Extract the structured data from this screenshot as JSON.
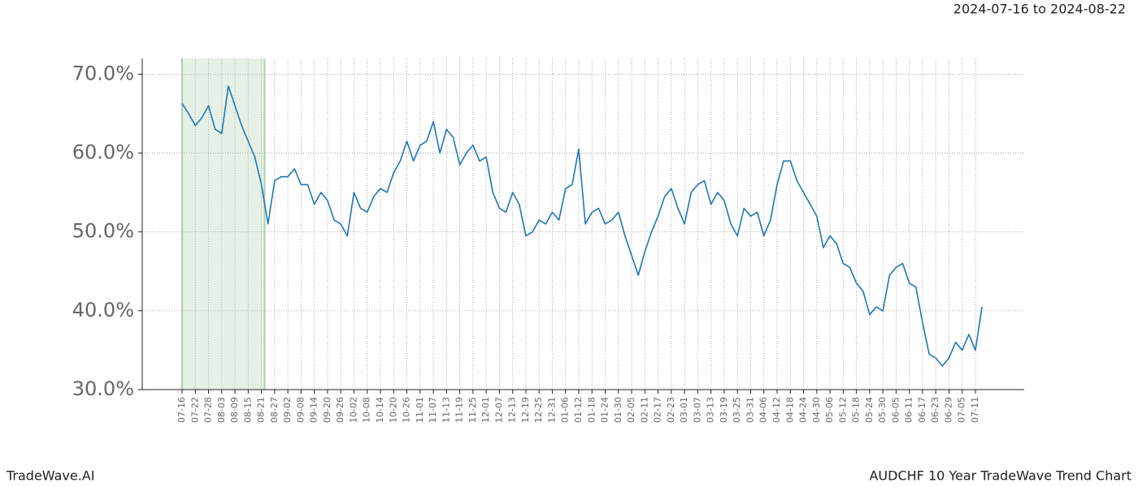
{
  "chart_data": {
    "type": "line",
    "subtitle": "2024-07-16 to 2024-08-22",
    "footer_left": "TradeWave.AI",
    "footer_right": "AUDCHF 10 Year TradeWave Trend Chart",
    "categories": [
      "07-16",
      null,
      "07-22",
      null,
      "07-28",
      null,
      "08-03",
      null,
      "08-09",
      null,
      "08-15",
      null,
      "08-21",
      null,
      "08-27",
      null,
      "09-02",
      null,
      "09-08",
      null,
      "09-14",
      null,
      "09-20",
      null,
      "09-26",
      null,
      "10-02",
      null,
      "10-08",
      null,
      "10-14",
      null,
      "10-20",
      null,
      "10-26",
      null,
      "11-01",
      null,
      "11-07",
      null,
      "11-13",
      null,
      "11-19",
      null,
      "11-25",
      null,
      "12-01",
      null,
      "12-07",
      null,
      "12-13",
      null,
      "12-19",
      null,
      "12-25",
      null,
      "12-31",
      null,
      "01-06",
      null,
      "01-12",
      null,
      "01-18",
      null,
      "01-24",
      null,
      "01-30",
      null,
      "02-05",
      null,
      "02-11",
      null,
      "02-17",
      null,
      "02-23",
      null,
      "03-01",
      null,
      "03-07",
      null,
      "03-13",
      null,
      "03-19",
      null,
      "03-25",
      null,
      "03-31",
      null,
      "04-06",
      null,
      "04-12",
      null,
      "04-18",
      null,
      "04-24",
      null,
      "04-30",
      null,
      "05-06",
      null,
      "05-12",
      null,
      "05-18",
      null,
      "05-24",
      null,
      "05-30",
      null,
      "06-05",
      null,
      "06-11",
      null,
      "06-17",
      null,
      "06-23",
      null,
      "06-29",
      null,
      "07-05",
      null,
      "07-11",
      null
    ],
    "series": [
      {
        "name": "AUDCHF",
        "color": "#1f77b4",
        "values": [
          66.3,
          65.0,
          63.5,
          64.5,
          66.0,
          63.0,
          62.5,
          68.5,
          66.0,
          63.5,
          61.5,
          59.5,
          56.0,
          51.0,
          56.5,
          57.0,
          57.0,
          58.0,
          56.0,
          56.0,
          53.5,
          55.0,
          54.0,
          51.5,
          51.0,
          49.5,
          55.0,
          53.0,
          52.5,
          54.5,
          55.5,
          55.0,
          57.5,
          59.0,
          61.5,
          59.0,
          61.0,
          61.5,
          64.0,
          60.0,
          63.0,
          62.0,
          58.5,
          60.0,
          61.0,
          59.0,
          59.5,
          55.0,
          53.0,
          52.5,
          55.0,
          53.5,
          49.5,
          50.0,
          51.5,
          51.0,
          52.5,
          51.5,
          55.5,
          56.0,
          60.5,
          51.0,
          52.5,
          53.0,
          51.0,
          51.5,
          52.5,
          49.5,
          47.0,
          44.5,
          47.5,
          50.0,
          52.0,
          54.5,
          55.5,
          53.0,
          51.0,
          55.0,
          56.0,
          56.5,
          53.5,
          55.0,
          54.0,
          51.0,
          49.5,
          53.0,
          52.0,
          52.5,
          49.5,
          51.5,
          56.0,
          59.0,
          59.0,
          56.5,
          55.0,
          53.5,
          52.0,
          48.0,
          49.5,
          48.5,
          46.0,
          45.5,
          43.5,
          42.5,
          39.5,
          40.5,
          40.0,
          44.5,
          45.5,
          46.0,
          43.5,
          43.0,
          38.5,
          34.5,
          34.0,
          33.0,
          34.0,
          36.0,
          35.0,
          37.0,
          35.0,
          40.5
        ]
      }
    ],
    "highlight": {
      "start": "07-16",
      "end": "08-21",
      "color": "#2e8b2e"
    },
    "ylim": [
      30,
      72
    ],
    "yticks": [
      {
        "value": 30,
        "label": "30.0%"
      },
      {
        "value": 40,
        "label": "40.0%"
      },
      {
        "value": 50,
        "label": "50.0%"
      },
      {
        "value": 60,
        "label": "60.0%"
      },
      {
        "value": 70,
        "label": "70.0%"
      }
    ],
    "grid": true
  }
}
